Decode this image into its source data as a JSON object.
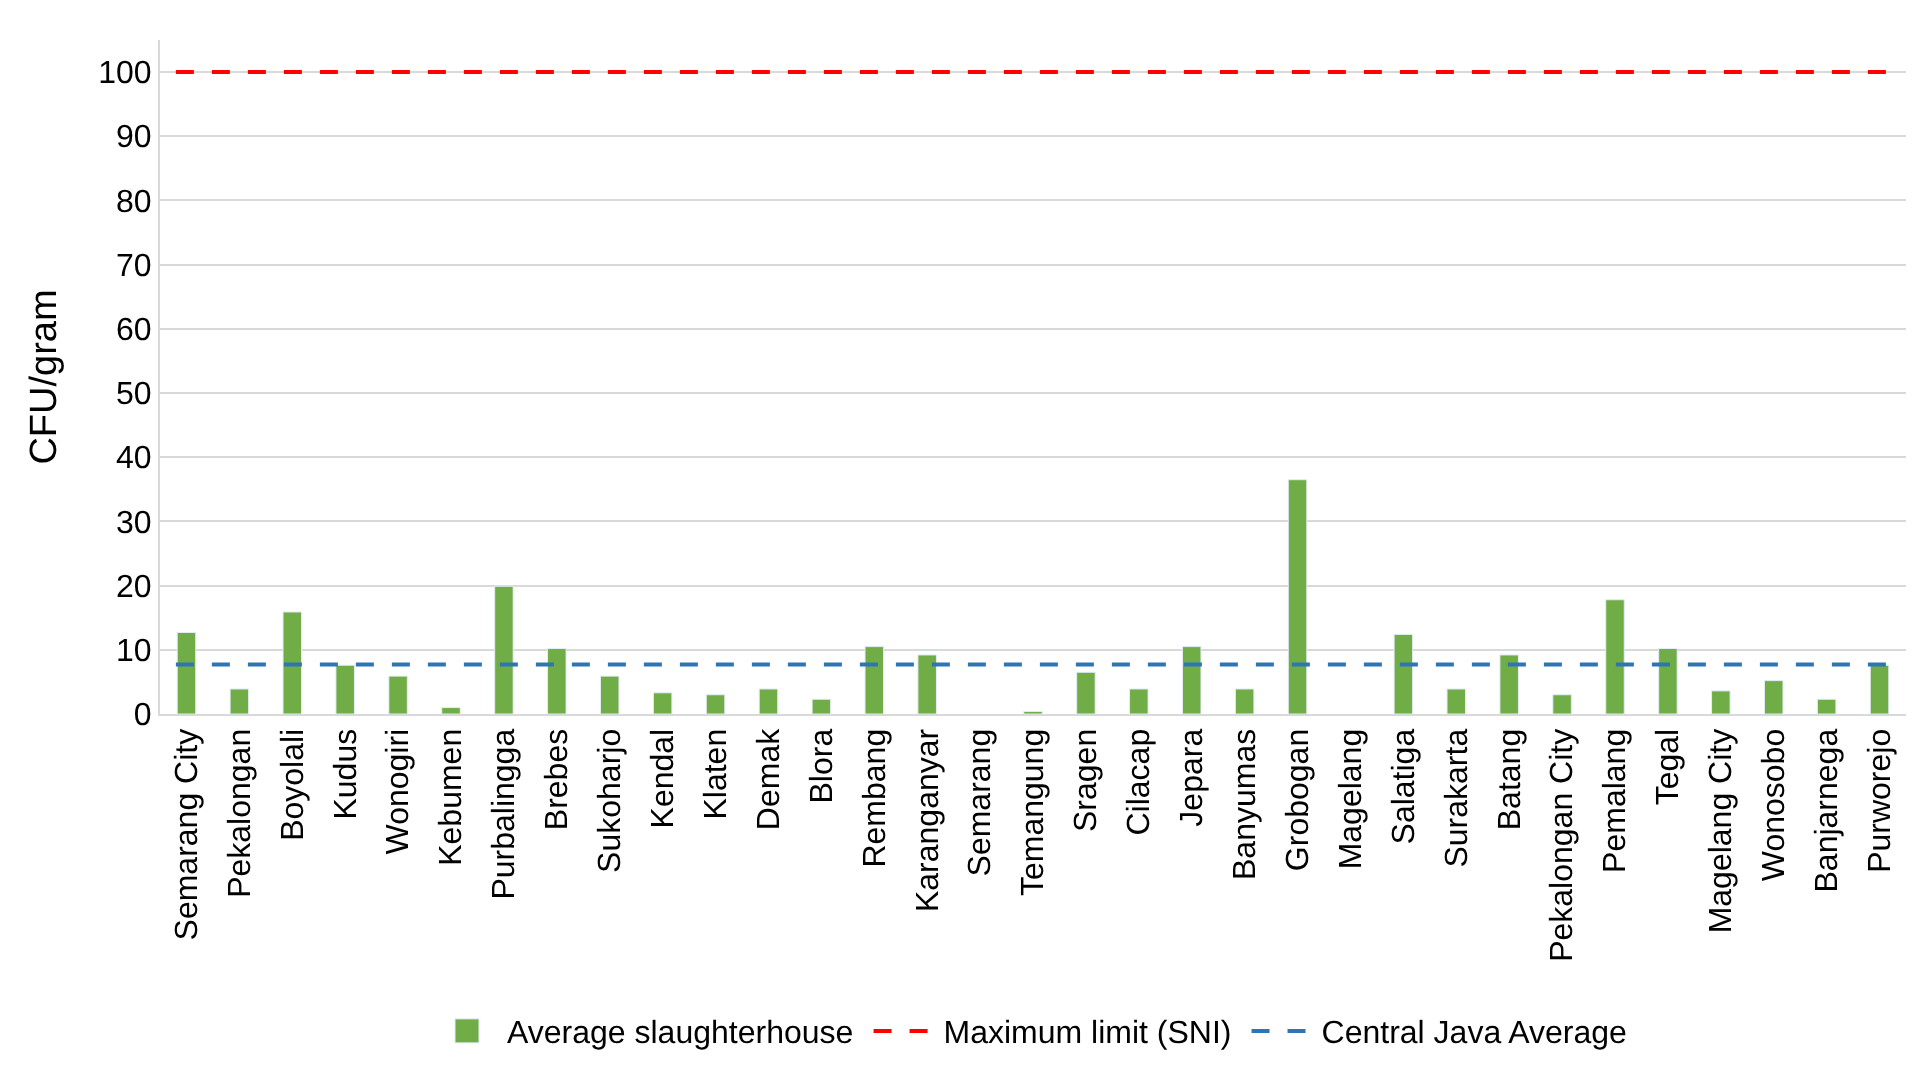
{
  "chart_data": {
    "type": "bar",
    "ylabel": "CFU/gram",
    "categories": [
      "Semarang City",
      "Pekalongan",
      "Boyolali",
      "Kudus",
      "Wonogiri",
      "Kebumen",
      "Purbalingga",
      "Brebes",
      "Sukoharjo",
      "Kendal",
      "Klaten",
      "Demak",
      "Blora",
      "Rembang",
      "Karanganyar",
      "Semarang",
      "Temangung",
      "Sragen",
      "Cilacap",
      "Jepara",
      "Banyumas",
      "Grobogan",
      "Magelang",
      "Salatiga",
      "Surakarta",
      "Batang",
      "Pekalongan City",
      "Pemalang",
      "Tegal",
      "Magelang City",
      "Wonosobo",
      "Banjarnega",
      "Purworejo"
    ],
    "series": [
      {
        "name": "Average slaughterhouse",
        "color": "#70ad47",
        "values": [
          12.7,
          3.9,
          15.9,
          7.6,
          5.9,
          1.0,
          19.9,
          10.2,
          5.9,
          3.3,
          3.0,
          3.9,
          2.3,
          10.5,
          9.2,
          null,
          0.4,
          6.5,
          3.9,
          10.5,
          3.9,
          36.5,
          null,
          12.4,
          3.9,
          9.2,
          3.0,
          17.8,
          10.2,
          3.6,
          5.2,
          2.3,
          7.6
        ]
      }
    ],
    "ref_lines": [
      {
        "axis": "y",
        "value": 100,
        "label": "Maximum limit (SNI)",
        "color": "#ff0000",
        "line_style": "dashed"
      },
      {
        "axis": "y",
        "value": 7.7,
        "label": "Central Java Average",
        "color": "#2e75b6",
        "line_style": "dashed"
      }
    ],
    "ylim": [
      0,
      105
    ],
    "yticks": [
      0,
      10,
      20,
      30,
      40,
      50,
      60,
      70,
      80,
      90,
      100
    ],
    "grid": "y",
    "legend": "bottom"
  }
}
